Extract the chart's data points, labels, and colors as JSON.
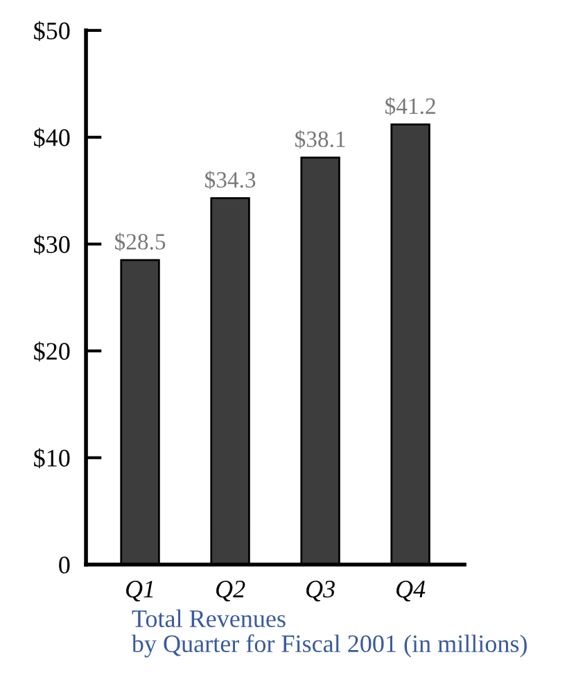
{
  "chart_data": {
    "type": "bar",
    "title": "Total Revenues",
    "subtitle": "by Quarter for Fiscal 2001 (in millions)",
    "categories": [
      "Q1",
      "Q2",
      "Q3",
      "Q4"
    ],
    "values": [
      28.5,
      34.3,
      38.1,
      41.2
    ],
    "value_labels": [
      "$28.5",
      "$34.3",
      "$38.1",
      "$41.2"
    ],
    "color": "#3d3d3d",
    "ylim": [
      0,
      50
    ],
    "yticks": [
      0,
      {
        "value": 10,
        "label": "$10"
      },
      {
        "value": 20,
        "label": "$20"
      },
      {
        "value": 30,
        "label": "$30"
      },
      {
        "value": 40,
        "label": "$40"
      },
      {
        "value": 50,
        "label": "$50"
      }
    ],
    "grid": false,
    "legend": false
  }
}
